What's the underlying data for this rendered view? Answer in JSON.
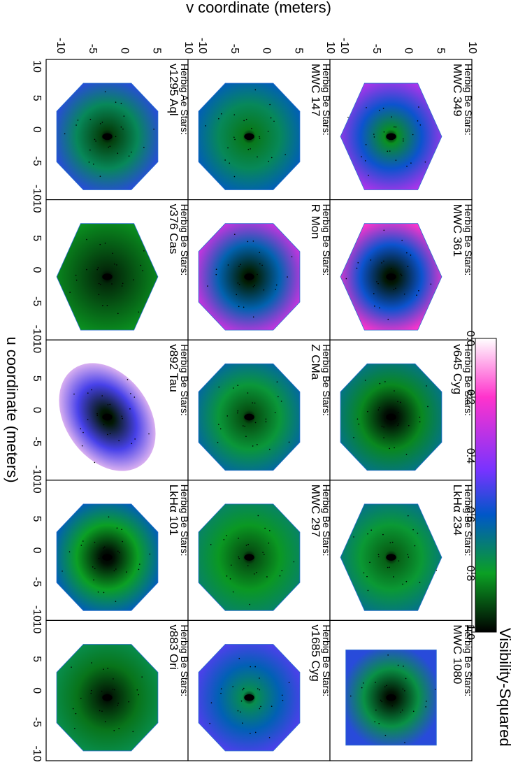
{
  "figure": {
    "x_axis_label": "u coordinate (meters)",
    "y_axis_label": "v coordinate (meters)",
    "colorbar_label": "Visibility-Squared",
    "colorbar_ticks": [
      "0.0",
      "0.2",
      "0.4",
      "0.6",
      "0.8",
      "1.0"
    ]
  },
  "chart_data": {
    "type": "heatmap",
    "orientation": "rotated-90",
    "grid": "3 columns x 5 rows of (u,v) visibility maps",
    "u_range": [
      -10,
      10
    ],
    "v_range": [
      -10,
      10
    ],
    "u_ticks": [
      10,
      5,
      0,
      -5,
      -10
    ],
    "v_ticks": [
      -10,
      -5,
      0,
      5,
      10
    ],
    "colorscale": {
      "label": "Visibility-Squared",
      "range": [
        0.0,
        1.0
      ],
      "stops": [
        {
          "value": 0.0,
          "color": "#ffffff"
        },
        {
          "value": 0.2,
          "color": "#ff33cc"
        },
        {
          "value": 0.45,
          "color": "#7733ff"
        },
        {
          "value": 0.6,
          "color": "#0057c8"
        },
        {
          "value": 0.8,
          "color": "#0ba024"
        },
        {
          "value": 1.0,
          "color": "#000000"
        }
      ]
    },
    "panels": [
      {
        "line1": "Herbig Ae Stars:",
        "line2": "v1295 Aql",
        "col": 0,
        "row": 0,
        "outer_v2": 0.55,
        "inner_v2": 0.92,
        "shape": "octagon"
      },
      {
        "line1": "Herbig Be Stars:",
        "line2": "v376 Cas",
        "col": 0,
        "row": 1,
        "outer_v2": 0.82,
        "inner_v2": 0.95,
        "shape": "hexagon"
      },
      {
        "line1": "Herbig Be Stars:",
        "line2": "v892 Tau",
        "col": 0,
        "row": 2,
        "outer_v2": 0.05,
        "inner_v2": 0.97,
        "shape": "ellipse"
      },
      {
        "line1": "Herbig Be Stars:",
        "line2": "LkHα 101",
        "col": 0,
        "row": 3,
        "outer_v2": 0.62,
        "inner_v2": 0.98,
        "shape": "octagon"
      },
      {
        "line1": "Herbig Be Stars:",
        "line2": "v883 Ori",
        "col": 0,
        "row": 4,
        "outer_v2": 0.75,
        "inner_v2": 0.96,
        "shape": "octagon"
      },
      {
        "line1": "Herbig Be Stars:",
        "line2": "MWC 147",
        "col": 1,
        "row": 0,
        "outer_v2": 0.62,
        "inner_v2": 0.85,
        "shape": "octagon"
      },
      {
        "line1": "Herbig Be Stars:",
        "line2": "R Mon",
        "col": 1,
        "row": 1,
        "outer_v2": 0.3,
        "inner_v2": 0.96,
        "shape": "octagon"
      },
      {
        "line1": "Herbig Be Stars:",
        "line2": "Z CMa",
        "col": 1,
        "row": 2,
        "outer_v2": 0.65,
        "inner_v2": 0.9,
        "shape": "octagon"
      },
      {
        "line1": "Herbig Be Stars:",
        "line2": "MWC 297",
        "col": 1,
        "row": 3,
        "outer_v2": 0.72,
        "inner_v2": 0.9,
        "shape": "octagon"
      },
      {
        "line1": "Herbig Be Stars:",
        "line2": "v1685 Cyg",
        "col": 1,
        "row": 4,
        "outer_v2": 0.5,
        "inner_v2": 0.75,
        "shape": "octagon"
      },
      {
        "line1": "Herbig Be Stars:",
        "line2": "MWC 349",
        "col": 2,
        "row": 0,
        "outer_v2": 0.35,
        "inner_v2": 0.82,
        "shape": "hexagon"
      },
      {
        "line1": "Herbig Be Stars:",
        "line2": "MWC 361",
        "col": 2,
        "row": 1,
        "outer_v2": 0.2,
        "inner_v2": 0.97,
        "shape": "hexagon"
      },
      {
        "line1": "Herbig Be Stars:",
        "line2": "v645 Cyg",
        "col": 2,
        "row": 2,
        "outer_v2": 0.68,
        "inner_v2": 0.98,
        "shape": "octagon"
      },
      {
        "line1": "Herbig Be Stars:",
        "line2": "LkHα 234",
        "col": 2,
        "row": 3,
        "outer_v2": 0.68,
        "inner_v2": 0.88,
        "shape": "hexagon"
      },
      {
        "line1": "Herbig Be Stars:",
        "line2": "MWC 1080",
        "col": 2,
        "row": 4,
        "outer_v2": 0.55,
        "inner_v2": 0.97,
        "shape": "square"
      }
    ]
  }
}
